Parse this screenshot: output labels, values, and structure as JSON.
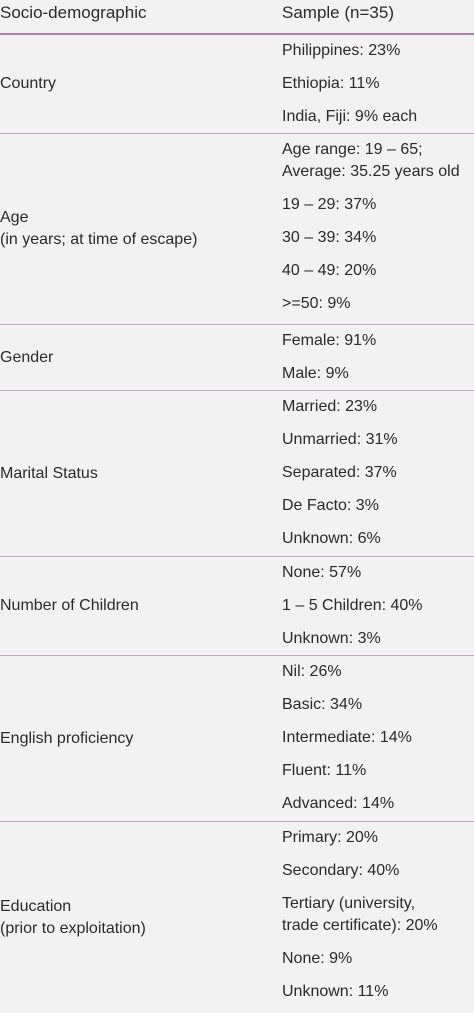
{
  "header": {
    "col1": "Socio-demographic",
    "col2": "Sample (n=35)"
  },
  "rows": [
    {
      "label": "Country",
      "sublabel": "",
      "values": [
        "Philippines: 23%",
        "Ethiopia: 11%",
        "India, Fiji: 9% each"
      ]
    },
    {
      "label": "Age",
      "sublabel": "(in years; at time of escape)",
      "values": [
        "Age range: 19 – 65;\nAverage: 35.25 years old",
        "19 – 29: 37%",
        "30 – 39: 34%",
        "40 – 49: 20%",
        ">=50: 9%"
      ]
    },
    {
      "label": "Gender",
      "sublabel": "",
      "values": [
        "Female: 91%",
        "Male: 9%"
      ]
    },
    {
      "label": "Marital Status",
      "sublabel": "",
      "values": [
        "Married: 23%",
        "Unmarried: 31%",
        "Separated: 37%",
        "De Facto: 3%",
        "Unknown: 6%"
      ]
    },
    {
      "label": "Number of Children",
      "sublabel": "",
      "values": [
        "None: 57%",
        "1 – 5 Children: 40%",
        "Unknown: 3%"
      ]
    },
    {
      "label": "English proficiency",
      "sublabel": "",
      "values": [
        "Nil: 26%",
        "Basic: 34%",
        "Intermediate: 14%",
        "Fluent: 11%",
        "Advanced: 14%"
      ]
    },
    {
      "label": "Education",
      "sublabel": "(prior to exploitation)",
      "values": [
        "Primary: 20%",
        "Secondary: 40%",
        "Tertiary (university,\ntrade certificate): 20%",
        "None: 9%",
        "Unknown: 11%"
      ]
    }
  ]
}
